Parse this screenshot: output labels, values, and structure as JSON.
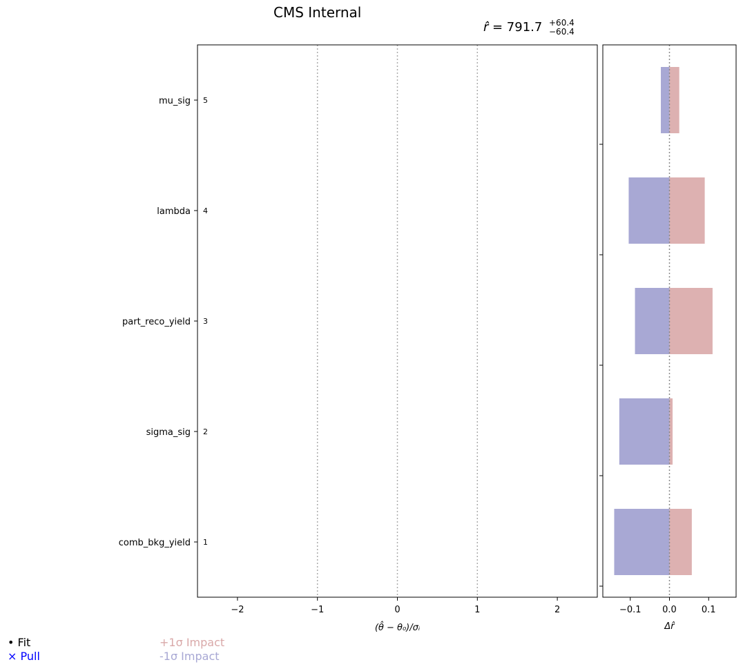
{
  "title": "CMS Internal",
  "result": {
    "symbol": "r̂",
    "value": "791.7",
    "err_up": "+60.4",
    "err_down": "−60.4"
  },
  "legend": {
    "fit": "• Fit",
    "pull": "× Pull",
    "impact_up": "+1σ Impact",
    "impact_down": "-1σ Impact"
  },
  "colors": {
    "impact_up": "#d9a8a8",
    "impact_down": "#a8a8d4",
    "pull": "#0000ff",
    "reference_line": "#aaaaaa"
  },
  "chart_data": [
    {
      "type": "bar",
      "panel": "pulls",
      "xlabel": "(θ̂ − θ₀)/σᵢ",
      "xlim": [
        -2.5,
        2.5
      ],
      "xticks": [
        -2,
        -1,
        0,
        1,
        2
      ],
      "reference_lines": [
        -1,
        0,
        1
      ],
      "parameters": [
        "mu_sig",
        "lambda",
        "part_reco_yield",
        "sigma_sig",
        "comb_bkg_yield"
      ],
      "ranks": [
        "5",
        "4",
        "3",
        "2",
        "1"
      ]
    },
    {
      "type": "bar",
      "panel": "impacts",
      "xlabel": "Δr̂",
      "xlim": [
        -0.17,
        0.17
      ],
      "xticks": [
        -0.1,
        0.0,
        0.1
      ],
      "xtick_labels": [
        "−0.1",
        "0.0",
        "0.1"
      ],
      "series": [
        {
          "name": "+1σ Impact",
          "values": [
            0.025,
            0.09,
            0.11,
            0.008,
            0.057
          ]
        },
        {
          "name": "-1σ Impact",
          "values": [
            -0.022,
            -0.104,
            -0.088,
            -0.128,
            -0.141
          ]
        }
      ],
      "categories": [
        "mu_sig",
        "lambda",
        "part_reco_yield",
        "sigma_sig",
        "comb_bkg_yield"
      ]
    }
  ]
}
